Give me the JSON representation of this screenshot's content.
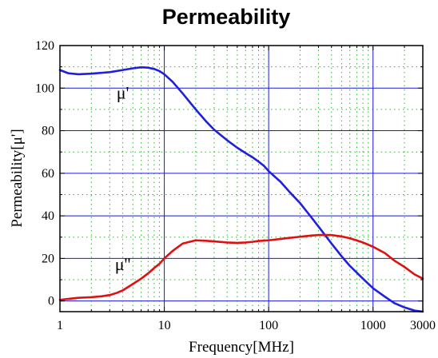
{
  "chart_data": {
    "type": "line",
    "title": "Permeability",
    "xlabel": "Frequency[MHz]",
    "ylabel": "Permeability[μ']",
    "x_scale": "log",
    "xlim": [
      1,
      3000
    ],
    "ylim": [
      -5,
      120
    ],
    "x_ticks": [
      1,
      10,
      100,
      1000,
      3000
    ],
    "x_tick_labels": [
      "1",
      "10",
      "100",
      "1000",
      "3000"
    ],
    "y_ticks": [
      0,
      20,
      40,
      60,
      80,
      100,
      120
    ],
    "y_tick_labels": [
      "0",
      "20",
      "40",
      "60",
      "80",
      "100",
      "120"
    ],
    "grid": true,
    "legend": "none",
    "series": [
      {
        "name": "μ'",
        "color": "#1f1fdf",
        "points": [
          [
            1,
            108.5
          ],
          [
            1.2,
            107
          ],
          [
            1.5,
            106.5
          ],
          [
            2,
            106.8
          ],
          [
            3,
            107.5
          ],
          [
            4,
            108.5
          ],
          [
            5,
            109.3
          ],
          [
            6,
            109.8
          ],
          [
            7,
            109.6
          ],
          [
            8,
            109
          ],
          [
            9,
            108
          ],
          [
            10,
            106.5
          ],
          [
            12,
            103
          ],
          [
            15,
            97.5
          ],
          [
            20,
            90
          ],
          [
            25,
            84.5
          ],
          [
            30,
            80.5
          ],
          [
            40,
            75.5
          ],
          [
            50,
            72
          ],
          [
            60,
            69.5
          ],
          [
            70,
            67.5
          ],
          [
            80,
            65.5
          ],
          [
            90,
            63.5
          ],
          [
            100,
            61
          ],
          [
            130,
            56
          ],
          [
            160,
            51
          ],
          [
            200,
            46
          ],
          [
            250,
            40
          ],
          [
            300,
            35
          ],
          [
            400,
            27
          ],
          [
            500,
            21
          ],
          [
            600,
            16.5
          ],
          [
            800,
            10.5
          ],
          [
            1000,
            6
          ],
          [
            1300,
            2
          ],
          [
            1600,
            -1
          ],
          [
            2000,
            -3
          ],
          [
            2500,
            -4.5
          ],
          [
            3000,
            -5
          ]
        ]
      },
      {
        "name": "μ''",
        "color": "#e01010",
        "points": [
          [
            1,
            0.5
          ],
          [
            1.2,
            1
          ],
          [
            1.5,
            1.5
          ],
          [
            2,
            1.8
          ],
          [
            2.5,
            2.2
          ],
          [
            3,
            2.8
          ],
          [
            3.5,
            3.8
          ],
          [
            4,
            5
          ],
          [
            5,
            8
          ],
          [
            6,
            10.5
          ],
          [
            7,
            13
          ],
          [
            8,
            15.5
          ],
          [
            9,
            17.5
          ],
          [
            10,
            20
          ],
          [
            12,
            23.5
          ],
          [
            15,
            27
          ],
          [
            20,
            28.5
          ],
          [
            25,
            28.3
          ],
          [
            30,
            28
          ],
          [
            40,
            27.5
          ],
          [
            50,
            27.3
          ],
          [
            60,
            27.5
          ],
          [
            70,
            27.8
          ],
          [
            80,
            28.2
          ],
          [
            100,
            28.5
          ],
          [
            150,
            29.5
          ],
          [
            200,
            30.2
          ],
          [
            250,
            30.7
          ],
          [
            300,
            31
          ],
          [
            400,
            31
          ],
          [
            500,
            30.3
          ],
          [
            600,
            29.5
          ],
          [
            800,
            27.5
          ],
          [
            1000,
            25.5
          ],
          [
            1300,
            22.5
          ],
          [
            1600,
            19
          ],
          [
            2000,
            16
          ],
          [
            2500,
            12.5
          ],
          [
            3000,
            10.5
          ]
        ]
      }
    ],
    "annotations": [
      {
        "text": "μ'",
        "x": 4,
        "y": 95,
        "series": 0
      },
      {
        "text": "μ''",
        "x": 4,
        "y": 14.5,
        "series": 1
      }
    ],
    "colors": {
      "axis": "#000000",
      "grid_major": "#1a1ad8",
      "grid_minor": "#2db82d"
    }
  }
}
